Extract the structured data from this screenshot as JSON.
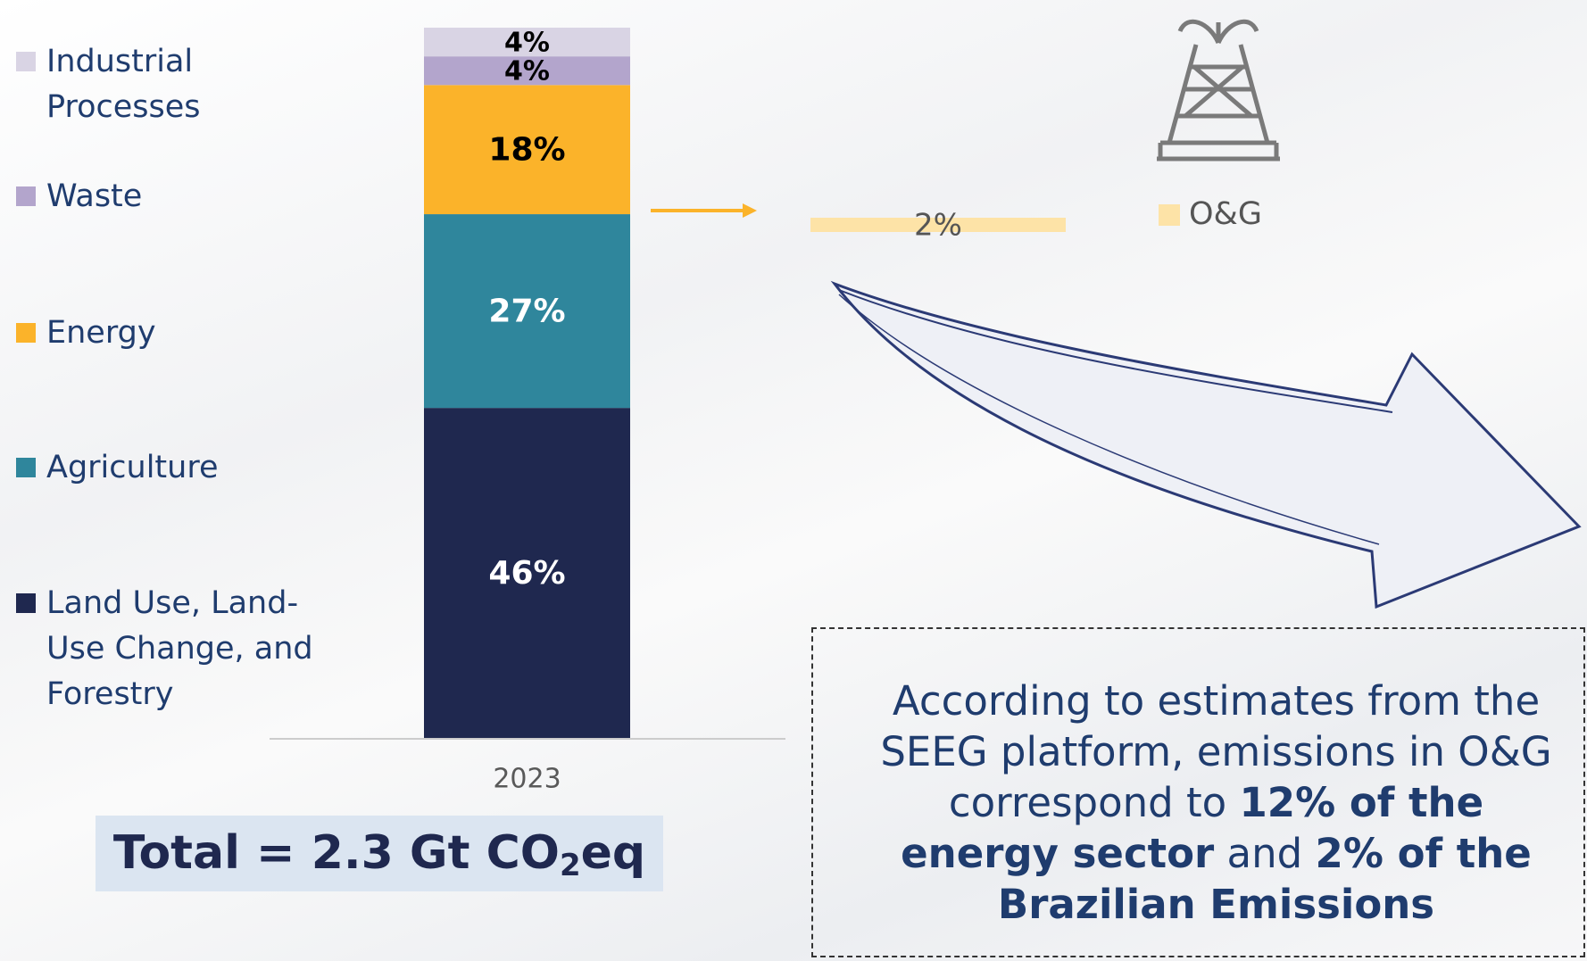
{
  "chart_data": [
    {
      "type": "bar",
      "stacked": true,
      "categories": [
        "2023"
      ],
      "series": [
        {
          "name": "Land Use, Land-Use Change, and Forestry",
          "color": "#1f284f",
          "label_color": "#ffffff",
          "values": [
            46
          ],
          "value_labels": [
            "46%"
          ]
        },
        {
          "name": "Agriculture",
          "color": "#2f869c",
          "label_color": "#ffffff",
          "values": [
            27
          ],
          "value_labels": [
            "27%"
          ]
        },
        {
          "name": "Energy",
          "color": "#fbb32a",
          "label_color": "#000000",
          "values": [
            18
          ],
          "value_labels": [
            "18%"
          ]
        },
        {
          "name": "Waste",
          "color": "#b3a5cc",
          "label_color": "#000000",
          "values": [
            4
          ],
          "value_labels": [
            "4%"
          ]
        },
        {
          "name": "Industrial Processes",
          "color": "#d9d4e4",
          "label_color": "#000000",
          "values": [
            4
          ],
          "value_labels": [
            "4%"
          ]
        }
      ]
    },
    {
      "type": "hbar",
      "series": [
        {
          "name": "O&G",
          "color": "#fde3a7",
          "values": [
            2
          ],
          "value_labels": [
            "2%"
          ]
        }
      ]
    }
  ],
  "total": {
    "text": "Total = 2.3 Gt CO",
    "subscript": "2",
    "suffix": "eq"
  },
  "note": [
    {
      "text": "According to estimates from the SEEG platform, emissions in O&G correspond to ",
      "bold": false
    },
    {
      "text": "12% of the energy sector",
      "bold": true
    },
    {
      "text": " and ",
      "bold": false
    },
    {
      "text": "2% of the Brazilian Emissions",
      "bold": true
    }
  ]
}
